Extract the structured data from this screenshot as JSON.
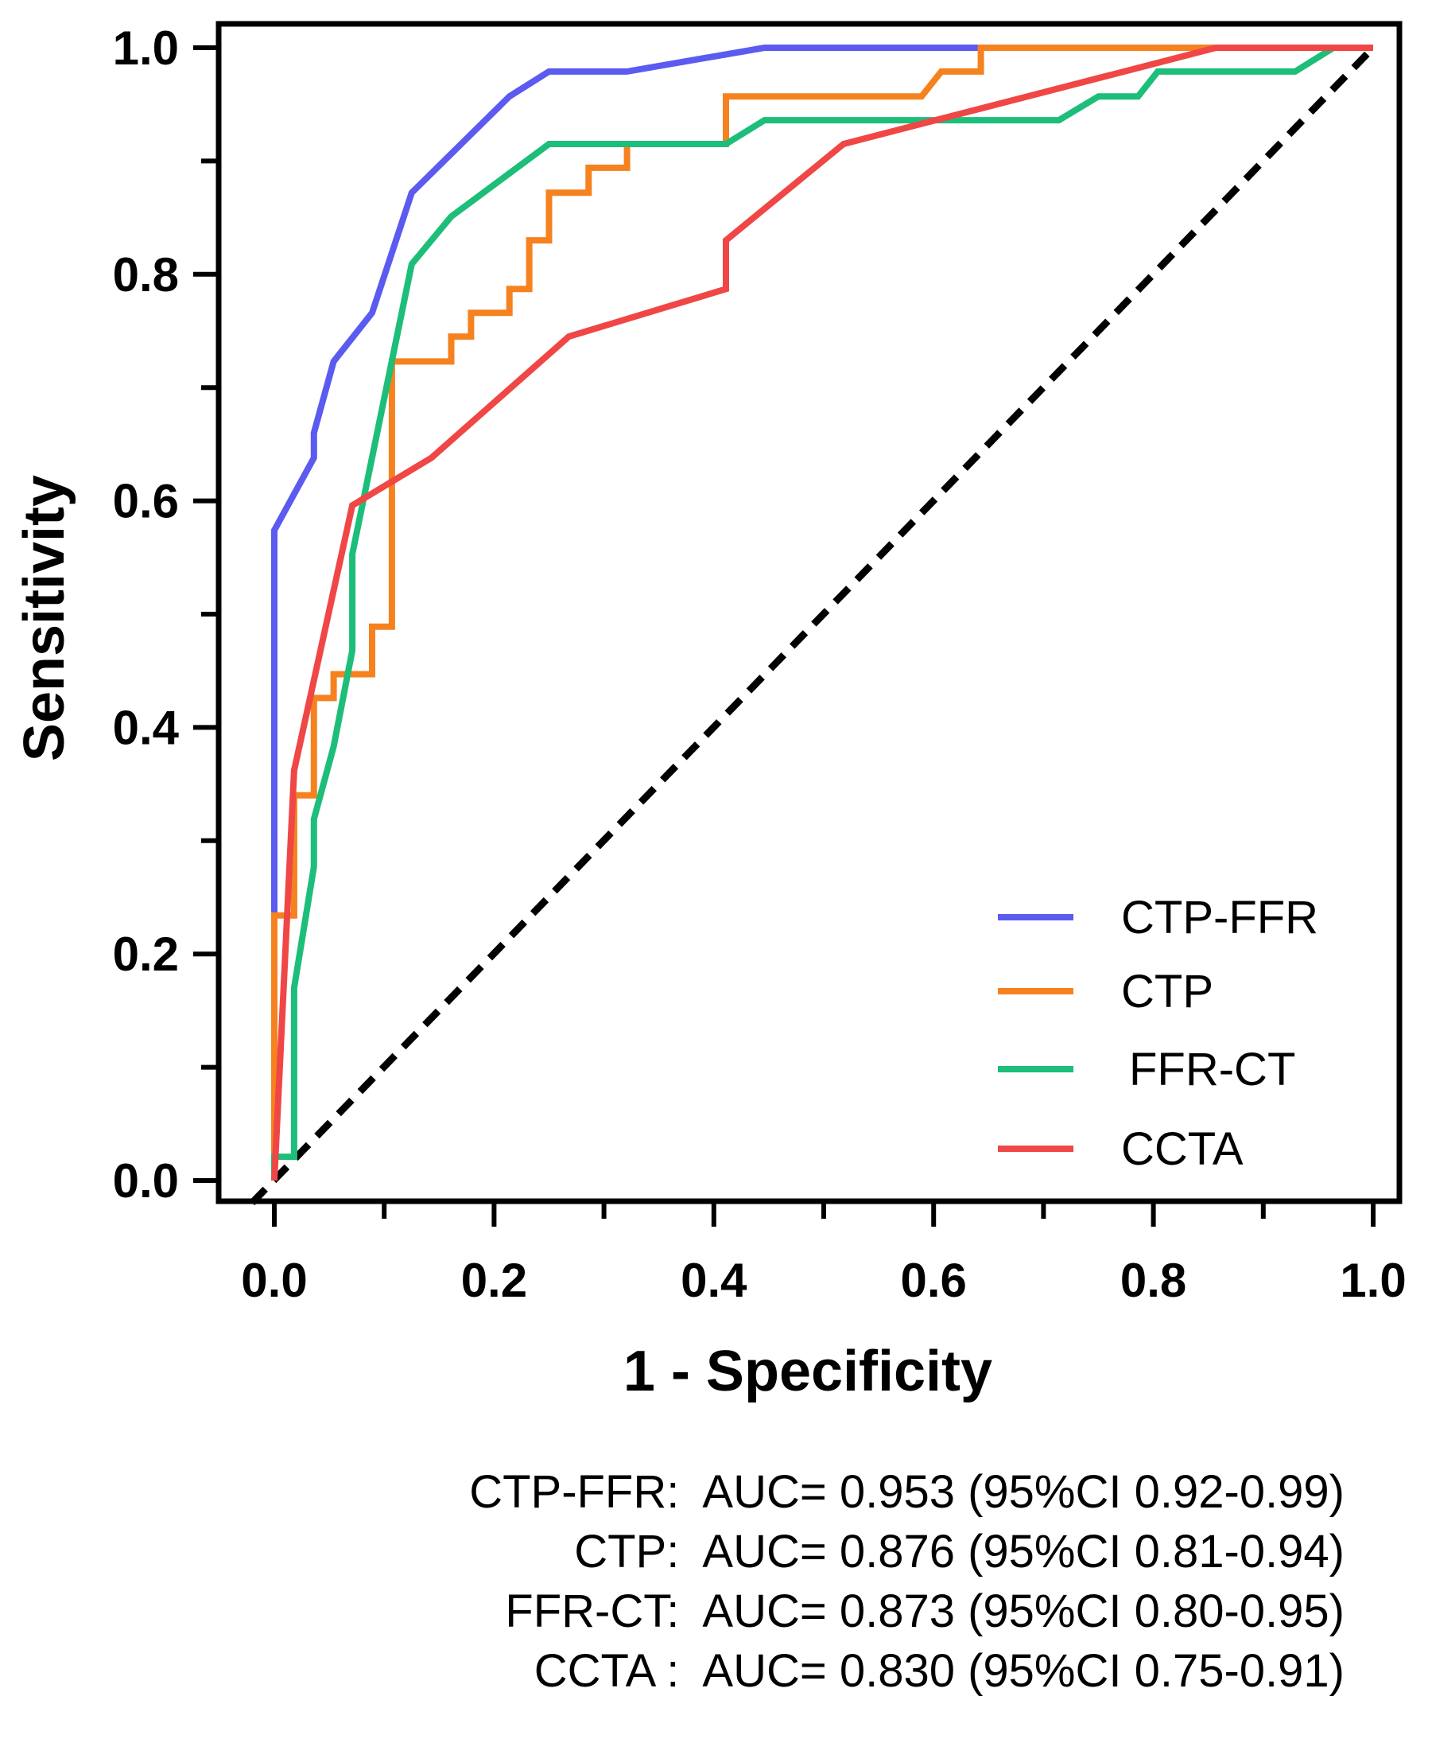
{
  "chart_data": {
    "type": "line",
    "xlabel": "1 - Specificity",
    "ylabel": "Sensitivity",
    "xlim": [
      0,
      1
    ],
    "ylim": [
      0,
      1
    ],
    "x_ticks": [
      "0.0",
      "0.2",
      "0.4",
      "0.6",
      "0.8",
      "1.0"
    ],
    "y_ticks": [
      "0.0",
      "0.2",
      "0.4",
      "0.6",
      "0.8",
      "1.0"
    ],
    "legend_position": "bottom-right",
    "grid": false,
    "reference_line": {
      "x": [
        0,
        1
      ],
      "y": [
        0,
        1
      ],
      "style": "dashed",
      "color": "#000000"
    },
    "series": [
      {
        "name": "CTP-FFR",
        "color": "#5B5BF0",
        "x": [
          0,
          0,
          0.036,
          0.036,
          0.054,
          0.089,
          0.125,
          0.214,
          0.25,
          0.321,
          0.446,
          1.0
        ],
        "y": [
          0,
          0.574,
          0.638,
          0.66,
          0.723,
          0.766,
          0.872,
          0.957,
          0.979,
          0.979,
          1.0,
          1.0
        ]
      },
      {
        "name": "CTP",
        "color": "#F5821F",
        "x": [
          0,
          0,
          0.018,
          0.018,
          0.036,
          0.036,
          0.054,
          0.054,
          0.089,
          0.089,
          0.107,
          0.107,
          0.161,
          0.161,
          0.179,
          0.179,
          0.214,
          0.214,
          0.232,
          0.232,
          0.25,
          0.25,
          0.286,
          0.286,
          0.321,
          0.321,
          0.411,
          0.411,
          0.589,
          0.607,
          0.643,
          0.643,
          1.0
        ],
        "y": [
          0,
          0.234,
          0.234,
          0.34,
          0.34,
          0.426,
          0.426,
          0.447,
          0.447,
          0.489,
          0.489,
          0.723,
          0.723,
          0.745,
          0.745,
          0.766,
          0.766,
          0.787,
          0.787,
          0.83,
          0.83,
          0.872,
          0.872,
          0.894,
          0.894,
          0.915,
          0.915,
          0.957,
          0.957,
          0.979,
          0.979,
          1.0,
          1.0
        ]
      },
      {
        "name": "FFR-CT",
        "color": "#1DBE79",
        "x": [
          0,
          0,
          0.018,
          0.018,
          0.036,
          0.036,
          0.054,
          0.071,
          0.071,
          0.125,
          0.161,
          0.25,
          0.411,
          0.446,
          0.714,
          0.75,
          0.786,
          0.804,
          0.929,
          0.964,
          1.0
        ],
        "y": [
          0,
          0.021,
          0.021,
          0.17,
          0.277,
          0.319,
          0.383,
          0.468,
          0.553,
          0.809,
          0.851,
          0.915,
          0.915,
          0.936,
          0.936,
          0.957,
          0.957,
          0.979,
          0.979,
          1.0,
          1.0
        ]
      },
      {
        "name": "CCTA",
        "color": "#F04646",
        "x": [
          0,
          0.018,
          0.071,
          0.143,
          0.268,
          0.411,
          0.411,
          0.518,
          0.857,
          1.0
        ],
        "y": [
          0,
          0.362,
          0.596,
          0.638,
          0.745,
          0.787,
          0.83,
          0.915,
          1.0,
          1.0
        ]
      }
    ]
  },
  "auc_notes": [
    "CTP-FFR:  AUC= 0.953 (95%CI 0.92-0.99)",
    "CTP:  AUC= 0.876 (95%CI 0.81-0.94)",
    "FFR-CT:  AUC= 0.873 (95%CI 0.80-0.95)",
    "CCTA :  AUC= 0.830 (95%CI 0.75-0.91)"
  ]
}
